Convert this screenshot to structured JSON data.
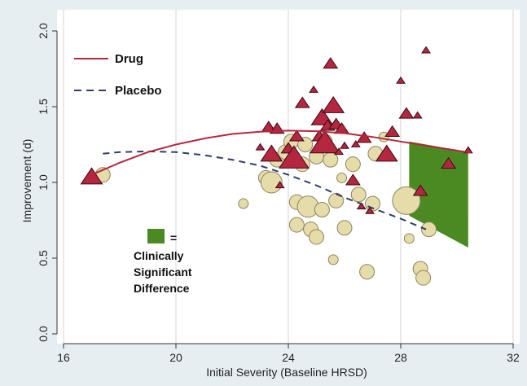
{
  "chart_data": {
    "type": "scatter",
    "title": "",
    "xlabel": "Initial Severity (Baseline HRSD)",
    "ylabel": "Improvement (d)",
    "xlim": [
      15.7,
      32
    ],
    "ylim": [
      -0.02,
      2.0
    ],
    "xticks": [
      16,
      20,
      24,
      28,
      32
    ],
    "yticks": [
      0.0,
      0.5,
      1.0,
      1.5,
      2.0
    ],
    "xtick_labels": [
      "16",
      "20",
      "24",
      "28",
      "32"
    ],
    "ytick_labels": [
      "0.0",
      "0.5",
      "1.0",
      "1.5",
      "2.0"
    ],
    "grid": "vertical",
    "legend_position": "top-left",
    "colors": {
      "drug": "#b5273e",
      "drug_edge": "#3a0a12",
      "placebo": "#2f3d6b",
      "placebo_fill": "#e6dcaa",
      "placebo_edge": "#8a845e",
      "significant": "#4b8a22",
      "background": "#e7eef2",
      "plot_area": "#ffffff"
    },
    "legend": {
      "drug_label": "Drug",
      "placebo_label": "Placebo",
      "region_line1": "=",
      "region_line2": "Clinically",
      "region_line3": "Significant",
      "region_line4": "Difference"
    },
    "series": [
      {
        "name": "Drug",
        "marker": "triangle",
        "points": [
          [
            17.0,
            1.03,
            3
          ],
          [
            23.0,
            1.23,
            1
          ],
          [
            23.3,
            1.36,
            2
          ],
          [
            23.4,
            1.18,
            3
          ],
          [
            23.6,
            1.35,
            2
          ],
          [
            23.7,
            0.98,
            1
          ],
          [
            24.0,
            1.22,
            2
          ],
          [
            24.2,
            1.15,
            4
          ],
          [
            24.3,
            1.3,
            2
          ],
          [
            24.5,
            1.52,
            2
          ],
          [
            24.9,
            1.61,
            1
          ],
          [
            25.1,
            1.3,
            2
          ],
          [
            25.2,
            1.42,
            3
          ],
          [
            25.3,
            1.25,
            4
          ],
          [
            25.4,
            1.37,
            2
          ],
          [
            25.5,
            1.78,
            2
          ],
          [
            25.6,
            1.5,
            3
          ],
          [
            25.7,
            1.38,
            2
          ],
          [
            25.8,
            1.2,
            1
          ],
          [
            25.9,
            1.35,
            2
          ],
          [
            26.0,
            1.24,
            1
          ],
          [
            26.3,
            1.01,
            2
          ],
          [
            26.4,
            1.25,
            1
          ],
          [
            26.6,
            0.84,
            1
          ],
          [
            26.7,
            1.29,
            2
          ],
          [
            26.9,
            0.81,
            1
          ],
          [
            27.5,
            1.18,
            3
          ],
          [
            27.7,
            1.33,
            2
          ],
          [
            28.0,
            1.67,
            1
          ],
          [
            28.2,
            1.45,
            2
          ],
          [
            28.6,
            1.44,
            1
          ],
          [
            28.7,
            0.94,
            2
          ],
          [
            28.9,
            1.87,
            1
          ],
          [
            29.7,
            1.12,
            2
          ],
          [
            30.4,
            1.21,
            1
          ]
        ]
      },
      {
        "name": "Placebo",
        "marker": "circle",
        "points": [
          [
            17.4,
            1.05,
            2
          ],
          [
            22.4,
            0.86,
            1
          ],
          [
            23.2,
            1.03,
            2
          ],
          [
            23.4,
            1.0,
            3
          ],
          [
            23.6,
            1.15,
            2
          ],
          [
            23.9,
            1.2,
            2
          ],
          [
            24.1,
            1.27,
            2
          ],
          [
            24.3,
            0.87,
            2
          ],
          [
            24.3,
            0.72,
            2
          ],
          [
            24.5,
            1.12,
            2
          ],
          [
            24.6,
            1.25,
            2
          ],
          [
            24.7,
            0.84,
            3
          ],
          [
            24.8,
            0.69,
            2
          ],
          [
            25.0,
            1.17,
            2
          ],
          [
            25.0,
            0.64,
            2
          ],
          [
            25.2,
            0.82,
            2
          ],
          [
            25.3,
            1.27,
            2
          ],
          [
            25.5,
            1.15,
            2
          ],
          [
            25.6,
            0.49,
            1
          ],
          [
            25.7,
            0.88,
            2
          ],
          [
            25.9,
            1.03,
            1
          ],
          [
            26.0,
            0.7,
            2
          ],
          [
            26.3,
            1.12,
            2
          ],
          [
            26.5,
            0.92,
            2
          ],
          [
            26.8,
            0.41,
            2
          ],
          [
            27.0,
            0.86,
            2
          ],
          [
            27.1,
            1.19,
            2
          ],
          [
            27.4,
            1.3,
            1
          ],
          [
            28.2,
            0.88,
            4
          ],
          [
            28.3,
            0.63,
            1
          ],
          [
            28.7,
            0.43,
            2
          ],
          [
            28.8,
            0.37,
            2
          ],
          [
            29.0,
            0.69,
            2
          ]
        ]
      }
    ],
    "fit_lines": {
      "drug_x": [
        17.0,
        18.0,
        19.0,
        20.0,
        21.0,
        22.0,
        23.0,
        24.0,
        25.0,
        26.0,
        27.0,
        28.0,
        29.0,
        30.0,
        30.5
      ],
      "drug_y": [
        1.05,
        1.13,
        1.2,
        1.25,
        1.29,
        1.32,
        1.335,
        1.342,
        1.338,
        1.325,
        1.3,
        1.27,
        1.24,
        1.21,
        1.195
      ],
      "placebo_x": [
        17.4,
        18.0,
        19.0,
        20.0,
        21.0,
        22.0,
        23.0,
        24.0,
        25.0,
        26.0,
        27.0,
        28.0,
        28.9
      ],
      "placebo_y": [
        1.19,
        1.2,
        1.205,
        1.2,
        1.18,
        1.15,
        1.11,
        1.05,
        0.98,
        0.9,
        0.83,
        0.76,
        0.69
      ]
    },
    "significant_region": {
      "x": [
        28.3,
        30.4,
        30.4,
        28.3
      ],
      "y": [
        1.27,
        1.2,
        0.57,
        0.78
      ]
    }
  }
}
